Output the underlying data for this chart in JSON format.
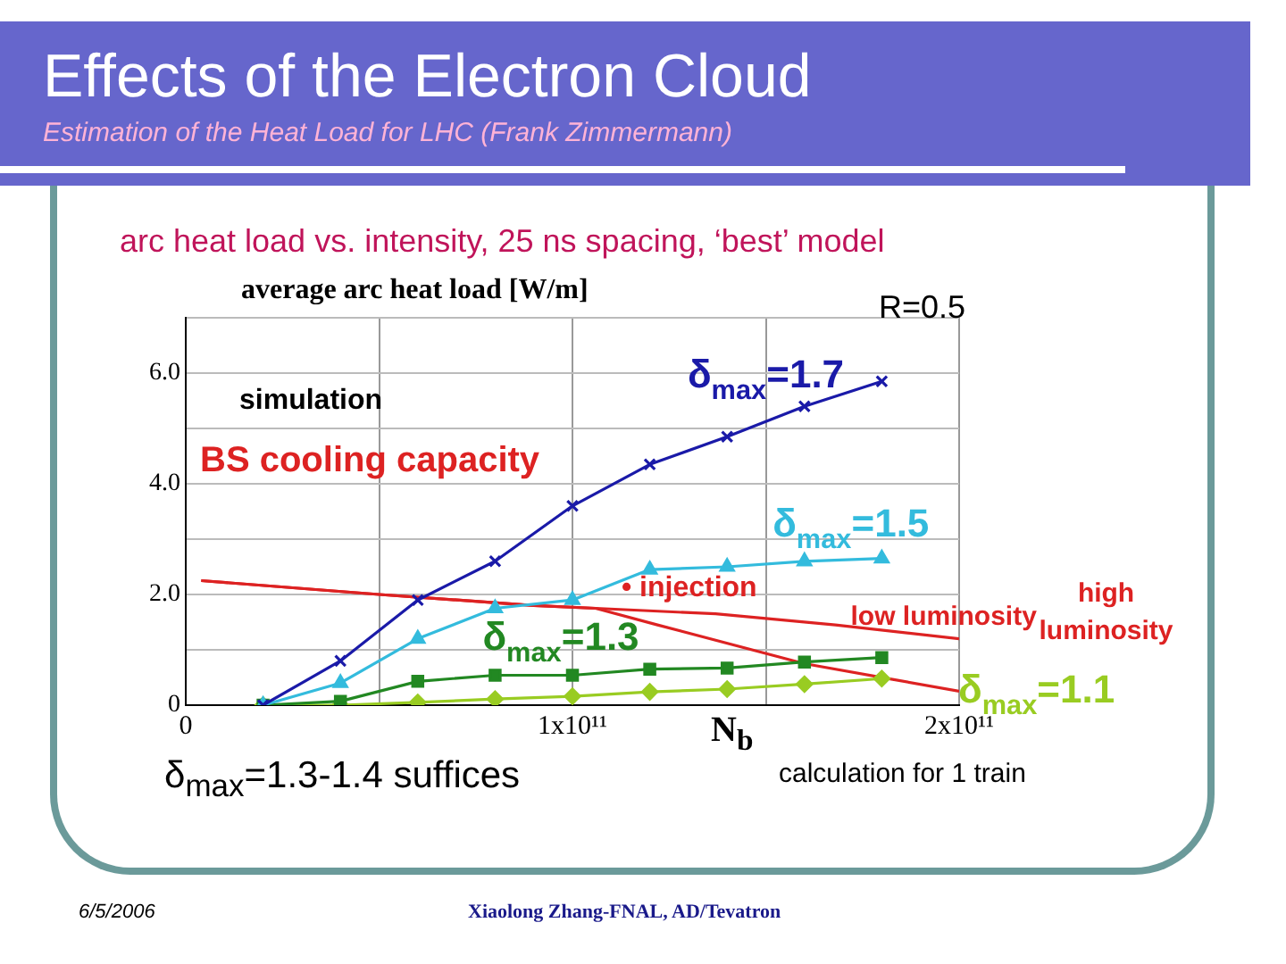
{
  "chart_data": {
    "type": "line",
    "title": "Effects of the Electron Cloud",
    "subtitle": "Estimation of the Heat Load for LHC (Frank Zimmermann)",
    "ylabel": "average arc heat load [W/m]",
    "xlabel": "N$_{b}$",
    "annotations": [
      "arc heat load vs. intensity, 25 ns spacing, ‘best’ model",
      "R=0.5",
      "simulation",
      "BS cooling capacity",
      "• injection",
      "δ$_{max}$=1.3-1.4 suffices",
      "calculation for 1 train",
      "6/5/2006",
      "Xiaolong Zhang-FNAL, AD/Tevatron"
    ],
    "xlim": [
      0,
      200000000000.0
    ],
    "xticks": [
      0,
      {
        "value": 50000000000.0,
        "label": null
      },
      {
        "value": 100000000000.0,
        "label": "1x10¹¹"
      },
      {
        "value": 150000000000.0,
        "label": null
      },
      {
        "value": 200000000000.0,
        "label": "2x10¹¹"
      }
    ],
    "ylim": [
      0,
      7
    ],
    "yticks": [
      0,
      {
        "value": 1,
        "label": null
      },
      {
        "value": 2,
        "label": "2.0"
      },
      {
        "value": 3,
        "label": null
      },
      {
        "value": 4,
        "label": "4.0"
      },
      {
        "value": 5,
        "label": null
      },
      {
        "value": 6,
        "label": "6.0"
      },
      {
        "value": 7,
        "label": null
      }
    ],
    "grid": true,
    "legend": false,
    "series": [
      {
        "name": "δ$_{max}$=1.7",
        "color": "#1a1aa8",
        "marker": "cross",
        "x": [
          20000000000.0,
          40000000000.0,
          60000000000.0,
          80000000000.0,
          100000000000.0,
          120000000000.0,
          140000000000.0,
          160000000000.0,
          180000000000.0
        ],
        "values": [
          0,
          0.8,
          1.9,
          2.6,
          3.6,
          4.35,
          4.85,
          5.4,
          5.85
        ]
      },
      {
        "name": "δ$_{max}$=1.5",
        "color": "#33bbdd",
        "marker": "triangle",
        "x": [
          20000000000.0,
          40000000000.0,
          60000000000.0,
          80000000000.0,
          100000000000.0,
          120000000000.0,
          140000000000.0,
          160000000000.0,
          180000000000.0
        ],
        "values": [
          0,
          0.4,
          1.2,
          1.75,
          1.9,
          2.45,
          2.5,
          2.6,
          2.65
        ]
      },
      {
        "name": "δ$_{max}$=1.3",
        "color": "#228822",
        "marker": "square",
        "x": [
          20000000000.0,
          40000000000.0,
          60000000000.0,
          80000000000.0,
          100000000000.0,
          120000000000.0,
          140000000000.0,
          160000000000.0,
          180000000000.0
        ],
        "values": [
          0,
          0.07,
          0.43,
          0.54,
          0.54,
          0.65,
          0.67,
          0.78,
          0.86
        ]
      },
      {
        "name": "δ$_{max}$=1.1",
        "color": "#99cc22",
        "marker": "diamond",
        "x": [
          20000000000.0,
          40000000000.0,
          60000000000.0,
          80000000000.0,
          100000000000.0,
          120000000000.0,
          140000000000.0,
          160000000000.0,
          180000000000.0
        ],
        "values": [
          0,
          0,
          0.05,
          0.11,
          0.16,
          0.24,
          0.29,
          0.38,
          0.48
        ]
      },
      {
        "name": "low luminosity",
        "color": "#dd2222",
        "marker": "none",
        "x": [
          4000000000.0,
          50000000000.0,
          90000000000.0,
          106000000000.0,
          137000000000.0,
          168000000000.0,
          200000000000.0
        ],
        "values": [
          2.25,
          2.0,
          1.8,
          1.75,
          1.65,
          1.45,
          1.2
        ]
      },
      {
        "name": "high luminosity",
        "color": "#dd2222",
        "marker": "none",
        "x": [
          4000000000.0,
          50000000000.0,
          90000000000.0,
          106000000000.0,
          122000000000.0,
          160000000000.0,
          200000000000.0
        ],
        "values": [
          2.25,
          2.0,
          1.8,
          1.75,
          1.45,
          0.75,
          0.25
        ]
      }
    ]
  }
}
